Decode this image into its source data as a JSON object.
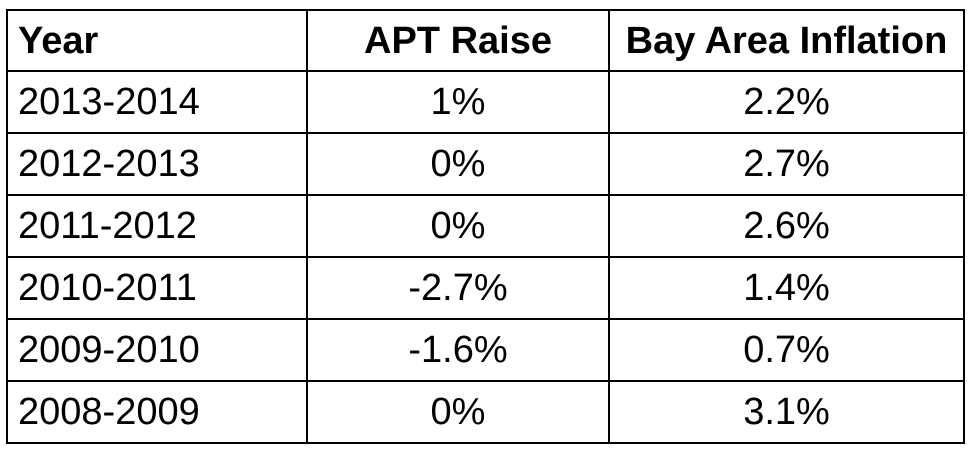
{
  "table": {
    "headers": [
      "Year",
      "APT Raise",
      "Bay Area Inflation"
    ],
    "rows": [
      [
        "2013-2014",
        "1%",
        "2.2%"
      ],
      [
        "2012-2013",
        "0%",
        "2.7%"
      ],
      [
        "2011-2012",
        "0%",
        "2.6%"
      ],
      [
        "2010-2011",
        "-2.7%",
        "1.4%"
      ],
      [
        "2009-2010",
        "-1.6%",
        "0.7%"
      ],
      [
        "2008-2009",
        "0%",
        "3.1%"
      ]
    ]
  }
}
